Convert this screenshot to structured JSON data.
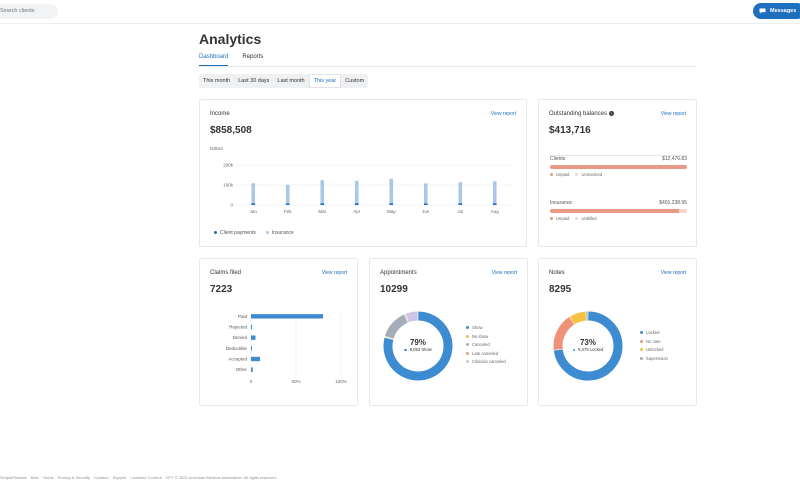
{
  "topbar": {
    "search_placeholder": "Search clients",
    "messages_label": "Messages"
  },
  "page": {
    "title": "Analytics",
    "tabs": [
      {
        "label": "Dashboard",
        "active": true
      },
      {
        "label": "Reports",
        "active": false
      }
    ],
    "filters": [
      {
        "label": "This month",
        "active": false
      },
      {
        "label": "Last 30 days",
        "active": false
      },
      {
        "label": "Last month",
        "active": false
      },
      {
        "label": "This year",
        "active": true
      },
      {
        "label": "Custom",
        "active": false
      }
    ]
  },
  "income": {
    "title": "Income",
    "view_report": "View report",
    "value": "$858,508",
    "unit_label": "Dollars",
    "legend": [
      {
        "label": "Client payments",
        "color": "#1f6fbf"
      },
      {
        "label": "Insurance",
        "color": "#a9c8e8"
      }
    ],
    "chart_data": {
      "type": "bar",
      "categories": [
        "Jan",
        "Feb",
        "Mar",
        "Apr",
        "May",
        "Jun",
        "Jul",
        "Aug"
      ],
      "series": [
        {
          "name": "Client payments",
          "values": [
            9000,
            8000,
            9000,
            9000,
            9000,
            8000,
            9000,
            9000
          ]
        },
        {
          "name": "Insurance",
          "values": [
            100000,
            93000,
            115000,
            112000,
            122000,
            100000,
            105000,
            110000
          ]
        }
      ],
      "yticks": [
        "0",
        "100k",
        "200k"
      ],
      "ylim": [
        0,
        200000
      ],
      "ylabel": "Dollars",
      "stacked": true,
      "grid": true
    }
  },
  "outstanding": {
    "title": "Outstanding balances",
    "view_report": "View report",
    "value": "$413,716",
    "rows": [
      {
        "label": "Clients",
        "amount": "$12,476.83",
        "fraction": 1.0,
        "legend": [
          "Unpaid",
          "Uninvoiced"
        ]
      },
      {
        "label": "Insurance",
        "amount": "$401,238.95",
        "fraction": 0.94,
        "legend": [
          "Unpaid",
          "Unbilled"
        ]
      }
    ],
    "colors": {
      "primary": "#e99a86",
      "secondary": "#f6d4cb"
    }
  },
  "claims": {
    "title": "Claims filed",
    "view_report": "View report",
    "value": "7223",
    "chart_data": {
      "type": "bar",
      "orientation": "horizontal",
      "categories": [
        "Paid",
        "Rejected",
        "Denied",
        "Deductible",
        "Accepted",
        "Other"
      ],
      "values": [
        80,
        1,
        5,
        1,
        10,
        2
      ],
      "xticks": [
        "0",
        "50%",
        "100%"
      ],
      "xlim": [
        0,
        100
      ],
      "grid": true
    }
  },
  "appointments": {
    "title": "Appointments",
    "view_report": "View report",
    "value": "10299",
    "center_percent": "79%",
    "center_label": "8,093 Show",
    "chart_data": {
      "type": "pie",
      "donut": true,
      "categories": [
        "Show",
        "No show",
        "Canceled",
        "Late canceled",
        "Clinician canceled"
      ],
      "values": [
        79,
        0.5,
        14,
        0.5,
        6
      ],
      "colors": [
        "#3d8bd0",
        "#f5c242",
        "#a4adb7",
        "#e99a86",
        "#cfc6e6"
      ]
    }
  },
  "notes": {
    "title": "Notes",
    "view_report": "View report",
    "value": "8295",
    "center_percent": "73%",
    "center_label": "6,075 Locked",
    "chart_data": {
      "type": "pie",
      "donut": true,
      "categories": [
        "Locked",
        "No note",
        "Unlocked",
        "Supervision"
      ],
      "values": [
        73,
        18,
        8,
        1
      ],
      "colors": [
        "#3d8bd0",
        "#ef9277",
        "#f5c242",
        "#a4adb7"
      ]
    }
  },
  "footer": {
    "items": [
      "SimplePractice",
      "BAA",
      "Terms",
      "Privacy & Security",
      "Cookies",
      "Support",
      "Licensed Content",
      "CPT © 2022 American Medical Association. All rights reserved."
    ]
  }
}
